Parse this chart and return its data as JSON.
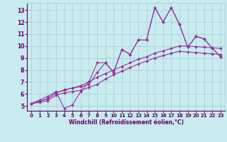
{
  "title": "",
  "xlabel": "Windchill (Refroidissement éolien,°C)",
  "ylabel": "",
  "background_color": "#c8ecee",
  "grid_color": "#aed4d8",
  "line_color": "#993399",
  "text_color": "#660066",
  "xlim": [
    -0.5,
    23.5
  ],
  "ylim": [
    4.6,
    13.6
  ],
  "xticks": [
    0,
    1,
    2,
    3,
    4,
    5,
    6,
    7,
    8,
    9,
    10,
    11,
    12,
    13,
    14,
    15,
    16,
    17,
    18,
    19,
    20,
    21,
    22,
    23
  ],
  "yticks": [
    5,
    6,
    7,
    8,
    9,
    10,
    11,
    12,
    13
  ],
  "series": [
    {
      "x": [
        0,
        1,
        2,
        3,
        4,
        5,
        6,
        7,
        8,
        9,
        10,
        11,
        12,
        13,
        14,
        15,
        16,
        17,
        18,
        19,
        20,
        21,
        22,
        23
      ],
      "y": [
        5.2,
        5.5,
        5.8,
        6.2,
        4.8,
        5.1,
        6.2,
        7.0,
        8.6,
        8.6,
        7.8,
        9.7,
        9.3,
        10.5,
        10.5,
        13.2,
        12.0,
        13.2,
        11.8,
        9.9,
        10.8,
        10.6,
        9.8,
        9.1
      ]
    },
    {
      "x": [
        0,
        1,
        2,
        3,
        4,
        5,
        6,
        7,
        8,
        9,
        10,
        11,
        12,
        13,
        14,
        15,
        16,
        17,
        18,
        19,
        20,
        21,
        22,
        23
      ],
      "y": [
        5.2,
        5.4,
        5.6,
        6.1,
        6.3,
        6.5,
        6.7,
        7.0,
        7.4,
        7.7,
        8.0,
        8.3,
        8.6,
        8.9,
        9.1,
        9.4,
        9.6,
        9.8,
        10.0,
        10.0,
        9.95,
        9.9,
        9.85,
        9.8
      ]
    },
    {
      "x": [
        0,
        1,
        2,
        3,
        4,
        5,
        6,
        7,
        8,
        9,
        10,
        11,
        12,
        13,
        14,
        15,
        16,
        17,
        18,
        19,
        20,
        21,
        22,
        23
      ],
      "y": [
        5.2,
        5.3,
        5.45,
        5.9,
        6.1,
        6.2,
        6.3,
        6.55,
        6.8,
        7.25,
        7.6,
        7.9,
        8.2,
        8.5,
        8.75,
        9.0,
        9.2,
        9.4,
        9.55,
        9.5,
        9.45,
        9.4,
        9.35,
        9.3
      ]
    },
    {
      "x": [
        0,
        1,
        2,
        3,
        4,
        5,
        6,
        7,
        8,
        9,
        10,
        11,
        12,
        13,
        14,
        15,
        16,
        17,
        18,
        19,
        20,
        21,
        22,
        23
      ],
      "y": [
        5.2,
        5.4,
        5.6,
        6.1,
        6.35,
        6.5,
        6.6,
        6.8,
        7.8,
        8.6,
        7.8,
        9.7,
        9.3,
        10.5,
        10.5,
        13.2,
        12.0,
        13.2,
        11.8,
        9.9,
        10.8,
        10.6,
        9.8,
        9.1
      ]
    }
  ]
}
